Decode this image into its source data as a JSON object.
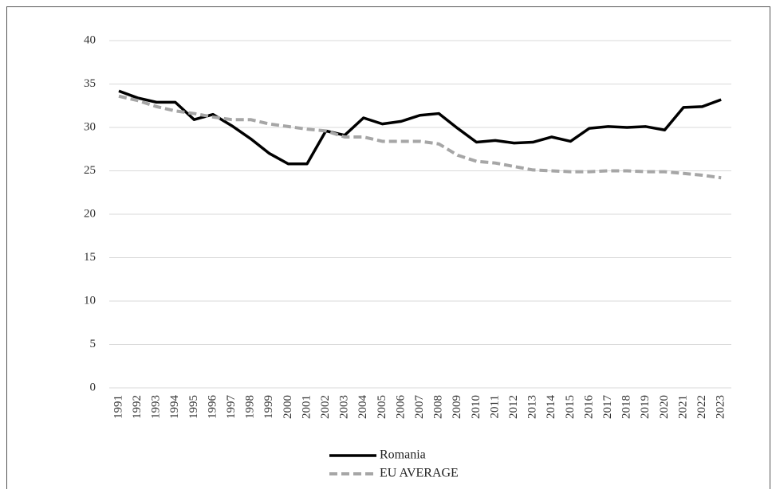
{
  "chart_data": {
    "type": "line",
    "categories": [
      "1991",
      "1992",
      "1993",
      "1994",
      "1995",
      "1996",
      "1997",
      "1998",
      "1999",
      "2000",
      "2001",
      "2002",
      "2003",
      "2004",
      "2005",
      "2006",
      "2007",
      "2008",
      "2009",
      "2010",
      "2011",
      "2012",
      "2013",
      "2014",
      "2015",
      "2016",
      "2017",
      "2018",
      "2019",
      "2020",
      "2021",
      "2022",
      "2023"
    ],
    "series": [
      {
        "name": "Romania",
        "color": "#000000",
        "dash": false,
        "values": [
          34.2,
          33.4,
          32.9,
          32.9,
          30.9,
          31.5,
          30.2,
          28.7,
          27.0,
          25.8,
          25.8,
          29.6,
          29.1,
          31.1,
          30.4,
          30.7,
          31.4,
          31.6,
          29.9,
          28.3,
          28.5,
          28.2,
          28.3,
          28.9,
          28.4,
          29.9,
          30.1,
          30.0,
          30.1,
          29.7,
          32.3,
          32.4,
          33.2
        ]
      },
      {
        "name": "EU AVERAGE",
        "color": "#a6a6a6",
        "dash": true,
        "values": [
          33.6,
          33.1,
          32.4,
          31.9,
          31.6,
          31.2,
          30.9,
          30.9,
          30.4,
          30.1,
          29.8,
          29.6,
          28.9,
          28.9,
          28.4,
          28.4,
          28.4,
          28.1,
          26.8,
          26.1,
          25.9,
          25.5,
          25.1,
          25.0,
          24.9,
          24.9,
          25.0,
          25.0,
          24.9,
          24.9,
          24.7,
          24.5,
          24.2
        ]
      }
    ],
    "ylim": [
      0,
      40
    ],
    "yticks": [
      0,
      5,
      10,
      15,
      20,
      25,
      30,
      35,
      40
    ],
    "grid": true,
    "legend": "bottom"
  }
}
